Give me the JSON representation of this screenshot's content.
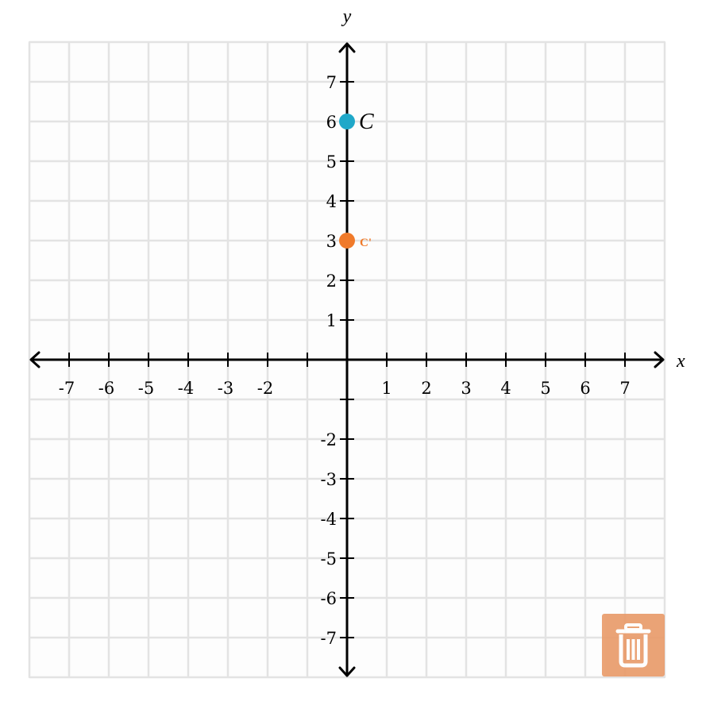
{
  "chart_data": {
    "type": "scatter",
    "xlim": [
      -8,
      8
    ],
    "ylim": [
      -8,
      8
    ],
    "grid": true,
    "xlabel": "x",
    "ylabel": "y",
    "x_ticks": [
      -7,
      -6,
      -5,
      -4,
      -3,
      -2,
      1,
      2,
      3,
      4,
      5,
      6,
      7
    ],
    "y_ticks": [
      -7,
      -6,
      -5,
      -4,
      -3,
      -2,
      1,
      2,
      3,
      4,
      5,
      6,
      7
    ],
    "points": [
      {
        "label": "C",
        "x": 0,
        "y": 6,
        "color": "#1fa8c9"
      },
      {
        "label": "C'",
        "x": 0,
        "y": 3,
        "color": "#f07a2a"
      }
    ]
  },
  "controls": {
    "delete_icon": "trash-icon",
    "delete_color": "#e99a68"
  }
}
